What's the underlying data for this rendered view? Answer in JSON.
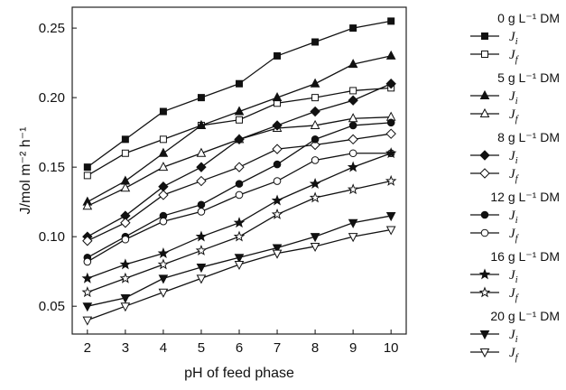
{
  "chart_data": {
    "type": "line",
    "xlabel": "pH of feed phase",
    "ylabel": "J/mol m⁻² h⁻¹",
    "xlim": [
      1.6,
      10.4
    ],
    "ylim": [
      0.03,
      0.265
    ],
    "x": [
      2,
      3,
      4,
      5,
      6,
      7,
      8,
      9,
      10
    ],
    "x_ticks": [
      "2",
      "3",
      "4",
      "5",
      "6",
      "7",
      "8",
      "9",
      "10"
    ],
    "y_ticks": [
      "0.05",
      "0.10",
      "0.15",
      "0.20",
      "0.25"
    ],
    "y_tick_values": [
      0.05,
      0.1,
      0.15,
      0.2,
      0.25
    ],
    "grid": false,
    "legend_position": "right",
    "groups": [
      {
        "label": "0 g L⁻¹ DM",
        "marker": "square",
        "series": [
          {
            "name": "Ji",
            "sub": "i",
            "filled": true,
            "values": [
              0.15,
              0.17,
              0.19,
              0.2,
              0.21,
              0.23,
              0.24,
              0.25,
              0.255
            ]
          },
          {
            "name": "Jf",
            "sub": "f",
            "filled": false,
            "values": [
              0.144,
              0.16,
              0.17,
              0.18,
              0.184,
              0.196,
              0.2,
              0.205,
              0.207
            ]
          }
        ]
      },
      {
        "label": "5 g L⁻¹ DM",
        "marker": "triangle-up",
        "series": [
          {
            "name": "Ji",
            "sub": "i",
            "filled": true,
            "values": [
              0.125,
              0.14,
              0.16,
              0.18,
              0.19,
              0.2,
              0.21,
              0.224,
              0.23
            ]
          },
          {
            "name": "Jf",
            "sub": "f",
            "filled": false,
            "values": [
              0.122,
              0.135,
              0.15,
              0.16,
              0.17,
              0.178,
              0.18,
              0.185,
              0.186
            ]
          }
        ]
      },
      {
        "label": "8 g L⁻¹ DM",
        "marker": "diamond",
        "series": [
          {
            "name": "Ji",
            "sub": "i",
            "filled": true,
            "values": [
              0.1,
              0.115,
              0.136,
              0.15,
              0.17,
              0.18,
              0.19,
              0.198,
              0.21
            ]
          },
          {
            "name": "Jf",
            "sub": "f",
            "filled": false,
            "values": [
              0.097,
              0.11,
              0.13,
              0.14,
              0.15,
              0.163,
              0.166,
              0.17,
              0.174
            ]
          }
        ]
      },
      {
        "label": "12 g L⁻¹ DM",
        "marker": "circle",
        "series": [
          {
            "name": "Ji",
            "sub": "i",
            "filled": true,
            "values": [
              0.085,
              0.1,
              0.115,
              0.123,
              0.138,
              0.152,
              0.17,
              0.18,
              0.182
            ]
          },
          {
            "name": "Jf",
            "sub": "f",
            "filled": false,
            "values": [
              0.082,
              0.098,
              0.111,
              0.118,
              0.13,
              0.14,
              0.155,
              0.16,
              0.16
            ]
          }
        ]
      },
      {
        "label": "16 g L⁻¹ DM",
        "marker": "star",
        "series": [
          {
            "name": "Ji",
            "sub": "i",
            "filled": true,
            "values": [
              0.07,
              0.08,
              0.088,
              0.1,
              0.11,
              0.126,
              0.138,
              0.15,
              0.16
            ]
          },
          {
            "name": "Jf",
            "sub": "f",
            "filled": false,
            "values": [
              0.06,
              0.07,
              0.08,
              0.09,
              0.1,
              0.116,
              0.128,
              0.134,
              0.14
            ]
          }
        ]
      },
      {
        "label": "20 g L⁻¹ DM",
        "marker": "triangle-down",
        "series": [
          {
            "name": "Ji",
            "sub": "i",
            "filled": true,
            "values": [
              0.05,
              0.056,
              0.07,
              0.078,
              0.085,
              0.092,
              0.1,
              0.11,
              0.115
            ]
          },
          {
            "name": "Jf",
            "sub": "f",
            "filled": false,
            "values": [
              0.04,
              0.05,
              0.06,
              0.07,
              0.08,
              0.088,
              0.093,
              0.1,
              0.105
            ]
          }
        ]
      }
    ]
  }
}
